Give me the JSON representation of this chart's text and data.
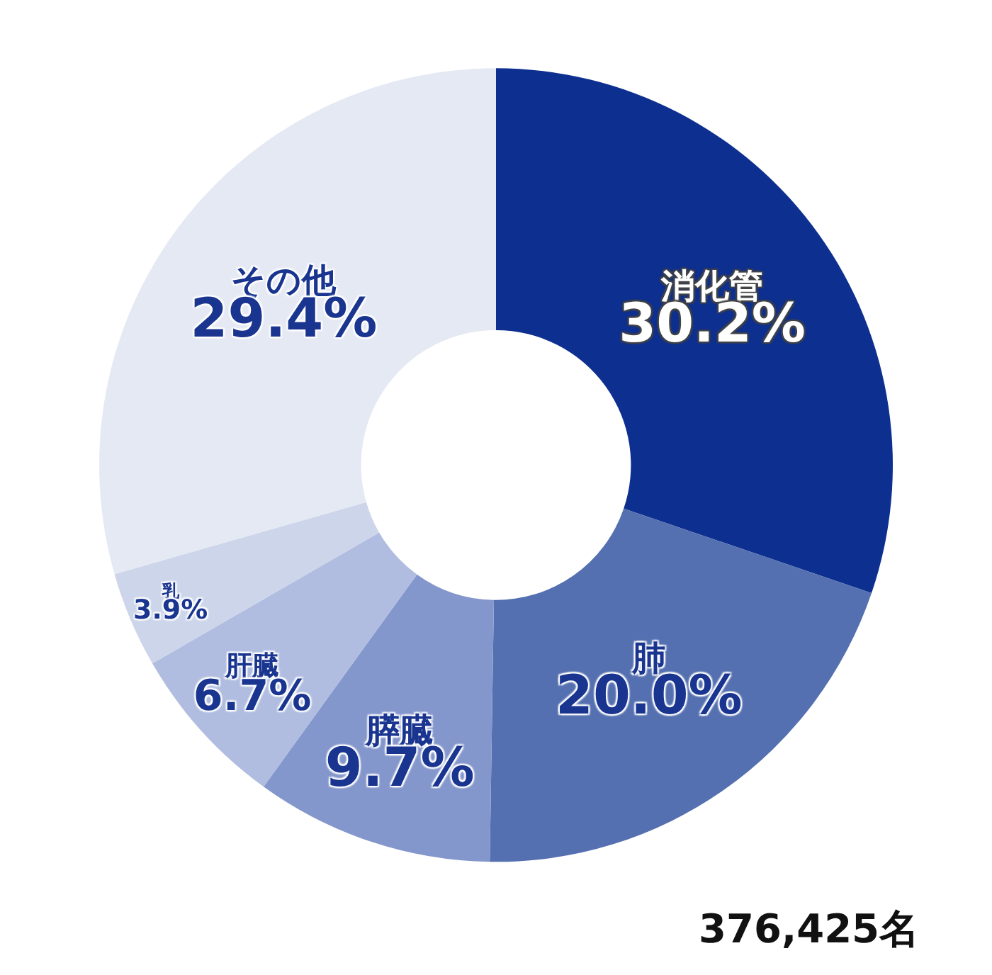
{
  "chart_data": {
    "type": "donut",
    "categories": [
      "消化管",
      "肺",
      "膵臓",
      "肝臓",
      "乳",
      "その他"
    ],
    "values": [
      30.2,
      20.0,
      9.7,
      6.7,
      3.9,
      29.4
    ],
    "value_labels": [
      "30.2%",
      "20.0%",
      "9.7%",
      "6.7%",
      "3.9%",
      "29.4%"
    ],
    "colors": [
      "#0d2f8f",
      "#5470b0",
      "#8497cc",
      "#b0bde0",
      "#cdd5ea",
      "#e5e9f4"
    ],
    "annotations": [
      "376,425名"
    ],
    "legend": false
  }
}
